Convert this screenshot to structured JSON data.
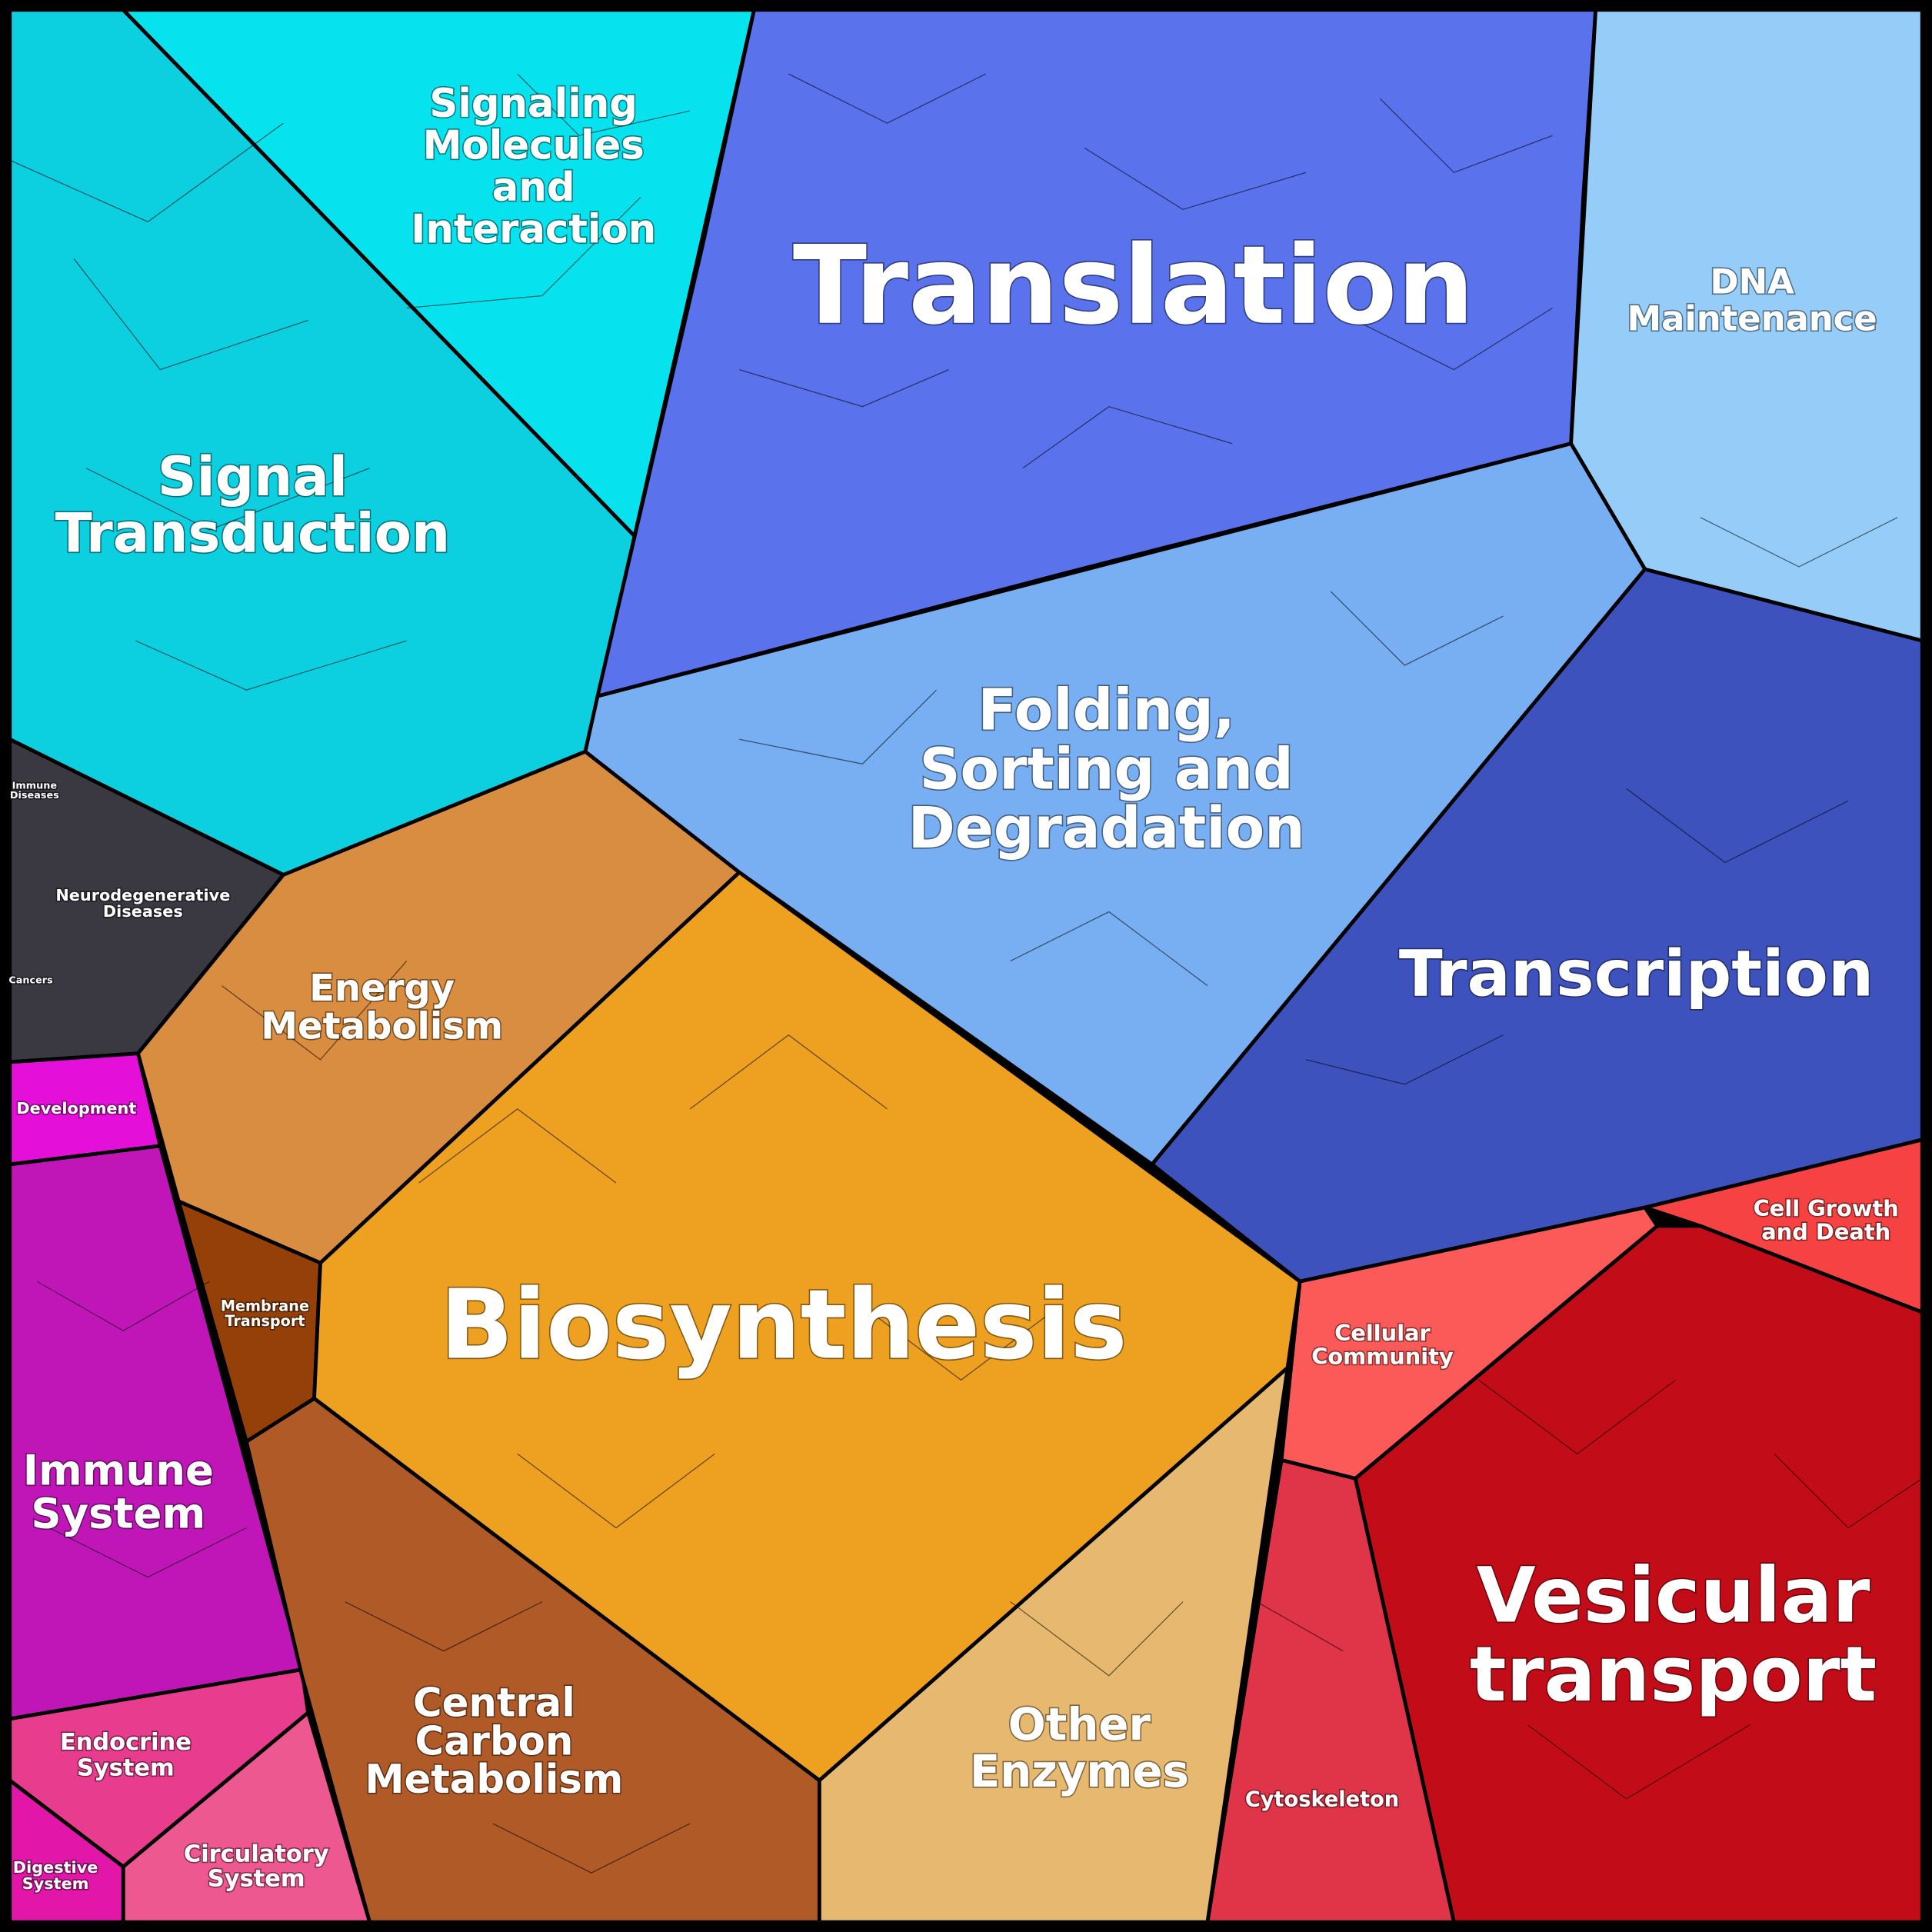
{
  "regions": [
    {
      "lines": [
        "Signaling",
        "Molecules",
        "and",
        "Interaction"
      ]
    },
    {
      "lines": [
        "Signal",
        "Transduction"
      ]
    },
    {
      "lines": [
        "Translation"
      ]
    },
    {
      "lines": [
        "DNA",
        "Maintenance"
      ]
    },
    {
      "lines": [
        "Folding,",
        "Sorting and",
        "Degradation"
      ]
    },
    {
      "lines": [
        "Transcription"
      ]
    },
    {
      "lines": [
        "Immune",
        "Diseases"
      ]
    },
    {
      "lines": [
        "Neurodegenerative",
        "Diseases"
      ]
    },
    {
      "lines": [
        "Cancers"
      ]
    },
    {
      "lines": [
        "Energy",
        "Metabolism"
      ]
    },
    {
      "lines": [
        "Development"
      ]
    },
    {
      "lines": [
        "Membrane",
        "Transport"
      ]
    },
    {
      "lines": [
        "Biosynthesis"
      ]
    },
    {
      "lines": [
        "Immune",
        "System"
      ]
    },
    {
      "lines": [
        "Cellular",
        "Community"
      ]
    },
    {
      "lines": [
        "Cell Growth",
        "and Death"
      ]
    },
    {
      "lines": [
        "Vesicular",
        "transport"
      ]
    },
    {
      "lines": [
        "Endocrine",
        "System"
      ]
    },
    {
      "lines": [
        "Central",
        "Carbon",
        "Metabolism"
      ]
    },
    {
      "lines": [
        "Other",
        "Enzymes"
      ]
    },
    {
      "lines": [
        "Circulatory",
        "System"
      ]
    },
    {
      "lines": [
        "Digestive",
        "System"
      ]
    },
    {
      "lines": [
        "Cytoskeleton"
      ]
    }
  ]
}
